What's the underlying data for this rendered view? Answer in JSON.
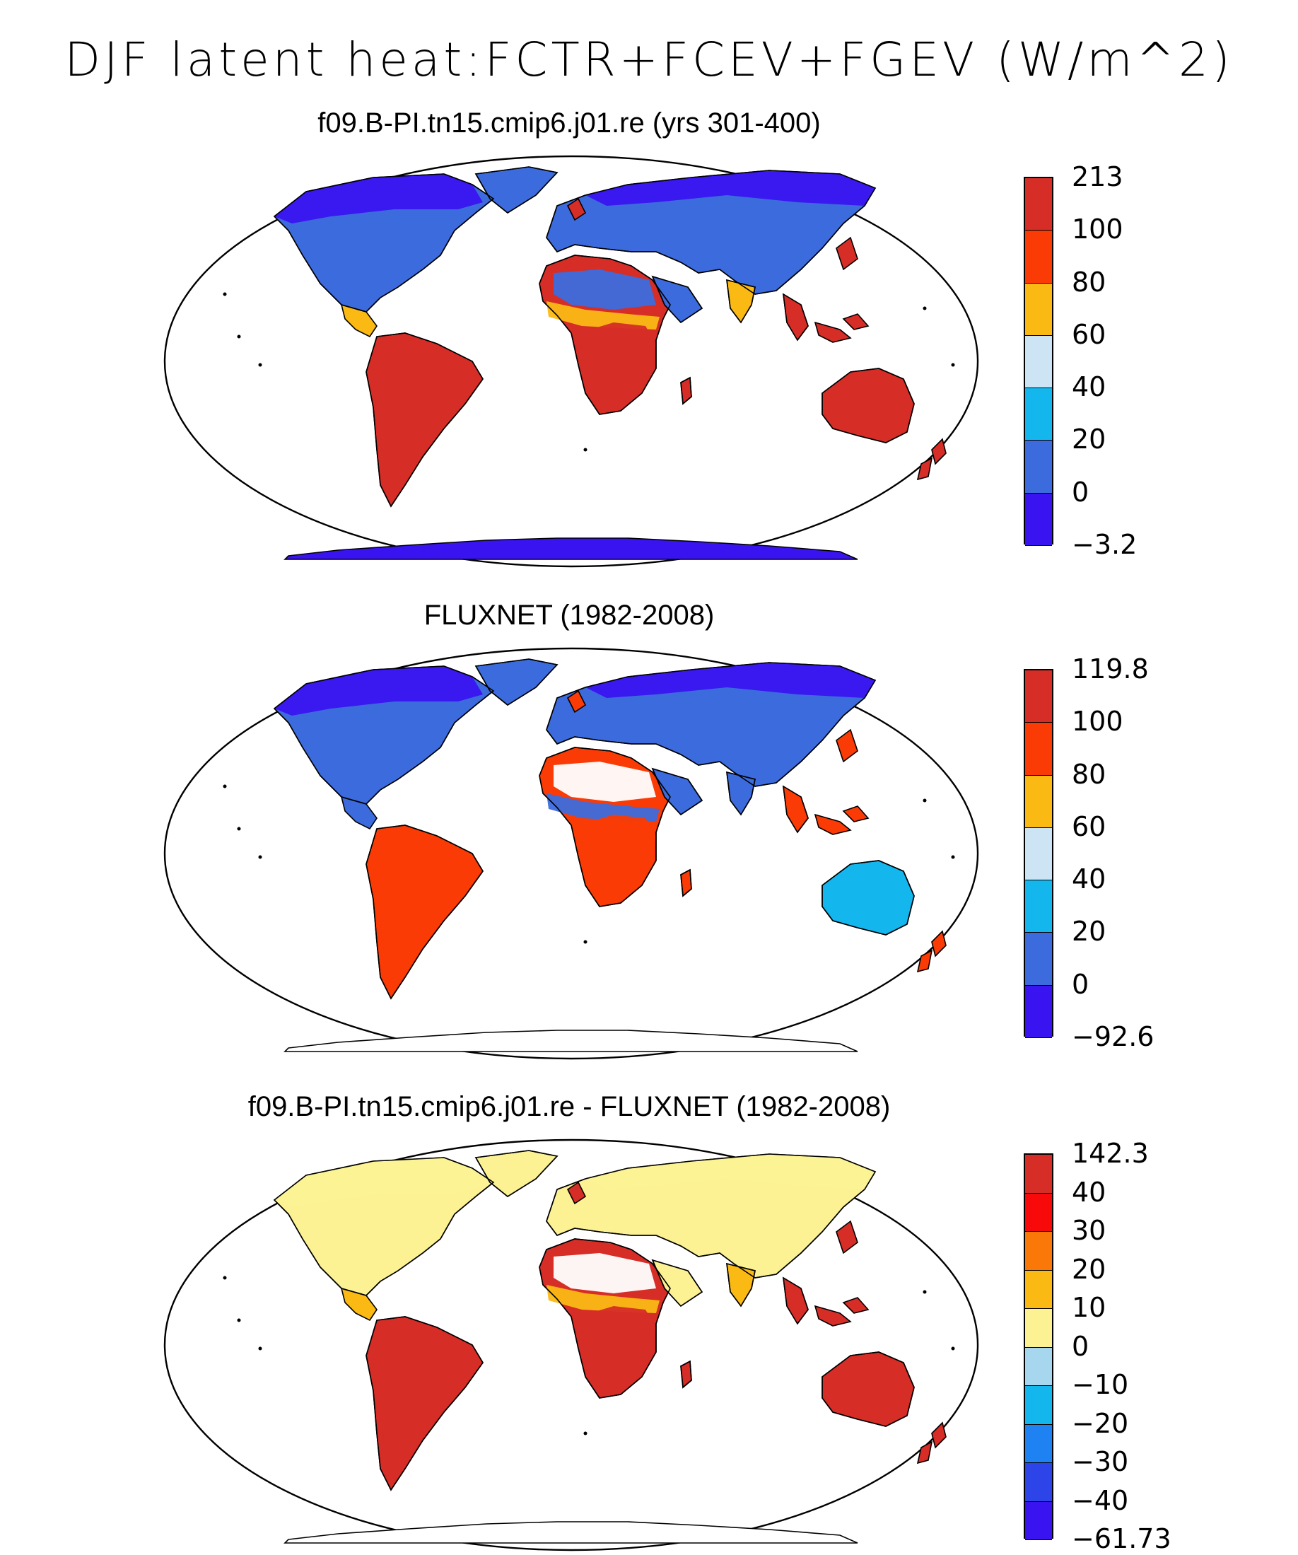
{
  "title": "DJF latent heat:FCTR+FCEV+FGEV (W/m^2)",
  "colors": {
    "ocean": "#ffffff",
    "coast": "#000000",
    "missing": "#ffffff"
  },
  "panels": [
    {
      "id": "model",
      "title": "f09.B-PI.tn15.cmip6.j01.re (yrs 301-400)",
      "colorbar": {
        "labels": [
          "213",
          "100",
          "80",
          "60",
          "40",
          "20",
          "0",
          "−3.2"
        ],
        "colors": [
          "#d62d27",
          "#fa3b05",
          "#fbb914",
          "#cce4f3",
          "#14b6ee",
          "#3c6bdd",
          "#3a14f0"
        ]
      },
      "fields": {
        "north_land": "#3c6bdd",
        "arctic": "#3a14f0",
        "tropics": "#d62d27",
        "sahel": "#fbb914",
        "australia": "#d62d27",
        "antarctica": "#3a14f0"
      }
    },
    {
      "id": "obs",
      "title": "FLUXNET (1982-2008)",
      "colorbar": {
        "labels": [
          "119.8",
          "100",
          "80",
          "60",
          "40",
          "20",
          "0",
          "−92.6"
        ],
        "colors": [
          "#d62d27",
          "#fa3b05",
          "#fbb914",
          "#cce4f3",
          "#14b6ee",
          "#3c6bdd",
          "#3a14f0"
        ]
      },
      "fields": {
        "north_land": "#3c6bdd",
        "arctic": "#3a14f0",
        "tropics": "#fa3b05",
        "sahel": "#3c6bdd",
        "australia": "#14b6ee",
        "antarctica": "#ffffff"
      }
    },
    {
      "id": "diff",
      "title": "f09.B-PI.tn15.cmip6.j01.re - FLUXNET (1982-2008)",
      "colorbar": {
        "labels": [
          "142.3",
          "40",
          "30",
          "20",
          "10",
          "0",
          "−10",
          "−20",
          "−30",
          "−40",
          "−61.73"
        ],
        "colors": [
          "#d62d27",
          "#f90a0a",
          "#fa7807",
          "#fbb914",
          "#fcf293",
          "#a7d6ef",
          "#14b6ee",
          "#1e82f2",
          "#2d45e8",
          "#3a14f0"
        ]
      },
      "fields": {
        "north_land": "#fcf293",
        "arctic": "#fcf293",
        "tropics": "#d62d27",
        "sahel": "#fbb914",
        "australia": "#d62d27",
        "antarctica": "#ffffff"
      }
    }
  ]
}
